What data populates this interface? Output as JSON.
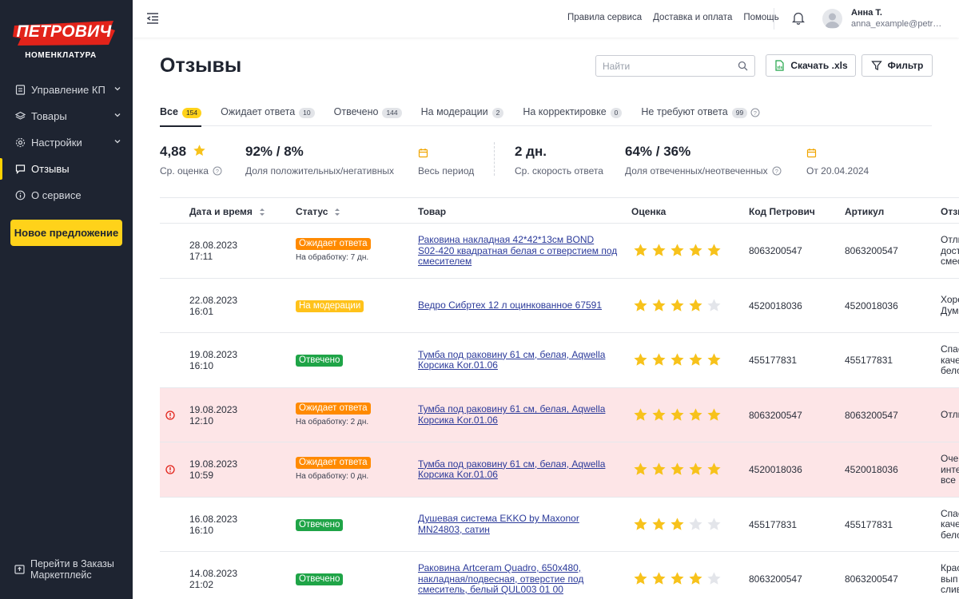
{
  "brand": {
    "logo": "ПЕТРОВИЧ",
    "subtitle": "НОМЕНКЛАТУРА"
  },
  "sidebar": {
    "items": [
      {
        "label": "Управление КП",
        "icon": "document-icon",
        "chevron": true
      },
      {
        "label": "Товары",
        "icon": "layers-icon",
        "chevron": true
      },
      {
        "label": "Настройки",
        "icon": "gear-icon",
        "chevron": true
      },
      {
        "label": "Отзывы",
        "icon": "chat-icon",
        "active": true
      },
      {
        "label": "О сервисе",
        "icon": "info-icon"
      }
    ],
    "new_button": "Новое предложение",
    "bottom_link": {
      "line1": "Перейти в Заказы",
      "line2": "Маркетплейс"
    }
  },
  "topbar": {
    "links": [
      "Правила сервиса",
      "Доставка и оплата",
      "Помощь"
    ],
    "user_name": "Анна Т.",
    "user_email": "anna_example@petr…"
  },
  "page": {
    "title": "Отзывы",
    "search_placeholder": "Найти",
    "download_label": "Скачать .xls",
    "filter_label": "Фильтр"
  },
  "tabs": [
    {
      "label": "Все",
      "count": "154",
      "active": true
    },
    {
      "label": "Ожидает ответа",
      "count": "10"
    },
    {
      "label": "Отвечено",
      "count": "144"
    },
    {
      "label": "На модерации",
      "count": "2"
    },
    {
      "label": "На корректировке",
      "count": "0"
    },
    {
      "label": "Не требуют ответа",
      "count": "99"
    }
  ],
  "stats": {
    "rating_value": "4,88",
    "rating_label": "Ср. оценка",
    "pos_neg_value": "92% / 8%",
    "pos_neg_label": "Доля положительных/негативных",
    "period1_label": "Весь период",
    "speed_value": "2 дн.",
    "speed_label": "Ср. скорость ответа",
    "answered_value": "64% / 36%",
    "answered_label": "Доля отвеченных/неотвеченных",
    "period2_label": "От 20.04.2024"
  },
  "table": {
    "headers": {
      "date": "Дата и время",
      "status": "Статус",
      "product": "Товар",
      "rating": "Оценка",
      "code": "Код Петрович",
      "article": "Артикул",
      "review": "Отзыв"
    },
    "rows": [
      {
        "date": "28.08.2023",
        "time": "17:11",
        "status": "Ожидает ответа",
        "status_color": "orange",
        "note": "На обработку: 7 дн.",
        "product": [
          "Раковина накладная 42*42*13см BOND",
          "S02-420 квадратная белая с отверстием под",
          "смесителем"
        ],
        "stars": 5,
        "code": "8063200547",
        "article": "8063200547",
        "review": [
          "Отли",
          "дост",
          "смес"
        ],
        "alert": false
      },
      {
        "date": "22.08.2023",
        "time": "16:01",
        "status": "На модерации",
        "status_color": "yellow",
        "note": "",
        "product": [
          "Ведро Сибртех 12 л оцинкованное 67591"
        ],
        "stars": 4,
        "code": "4520018036",
        "article": "4520018036",
        "review": [
          "Хоро",
          "Дум"
        ],
        "alert": false
      },
      {
        "date": "19.08.2023",
        "time": "16:10",
        "status": "Отвечено",
        "status_color": "green",
        "note": "",
        "product": [
          "Тумба под раковину 61 см, белая, Aqwella",
          "Корсика Kor.01.06"
        ],
        "stars": 5,
        "code": "455177831",
        "article": "455177831",
        "review": [
          "Спас",
          "каче",
          "бело"
        ],
        "alert": false
      },
      {
        "date": "19.08.2023",
        "time": "12:10",
        "status": "Ожидает ответа",
        "status_color": "orange",
        "note": "На обработку: 2 дн.",
        "product": [
          "Тумба под раковину 61 см, белая, Aqwella",
          "Корсика Kor.01.06"
        ],
        "stars": 5,
        "code": "8063200547",
        "article": "8063200547",
        "review": [
          "Отли"
        ],
        "alert": true
      },
      {
        "date": "19.08.2023",
        "time": "10:59",
        "status": "Ожидает ответа",
        "status_color": "orange",
        "note": "На обработку: 0 дн.",
        "product": [
          "Тумба под раковину 61 см, белая, Aqwella",
          "Корсика Kor.01.06"
        ],
        "stars": 5,
        "code": "4520018036",
        "article": "4520018036",
        "review": [
          "Очен",
          "инте",
          "все р"
        ],
        "alert": true
      },
      {
        "date": "16.08.2023",
        "time": "16:10",
        "status": "Отвечено",
        "status_color": "green",
        "note": "",
        "product": [
          "Душевая система EKKO by Maxonor",
          "MN24803, сатин"
        ],
        "stars": 3,
        "code": "455177831",
        "article": "455177831",
        "review": [
          "Спас",
          "каче",
          "бело"
        ],
        "alert": false
      },
      {
        "date": "14.08.2023",
        "time": "21:02",
        "status": "Отвечено",
        "status_color": "green",
        "note": "",
        "product": [
          "Раковина Artceram Quadro, 650x480,",
          "накладная/подвесная, отверстие под",
          "смеситель, белый QUL003 01 00"
        ],
        "stars": 4,
        "code": "8063200547",
        "article": "8063200547",
        "review": [
          "Крас",
          "вып",
          "слив"
        ],
        "alert": false
      }
    ]
  },
  "colors": {
    "sidebar_bg": "#1e2431",
    "accent_yellow": "#ffd21a",
    "star": "#f7c21b",
    "alert_row": "#fde5e7"
  }
}
